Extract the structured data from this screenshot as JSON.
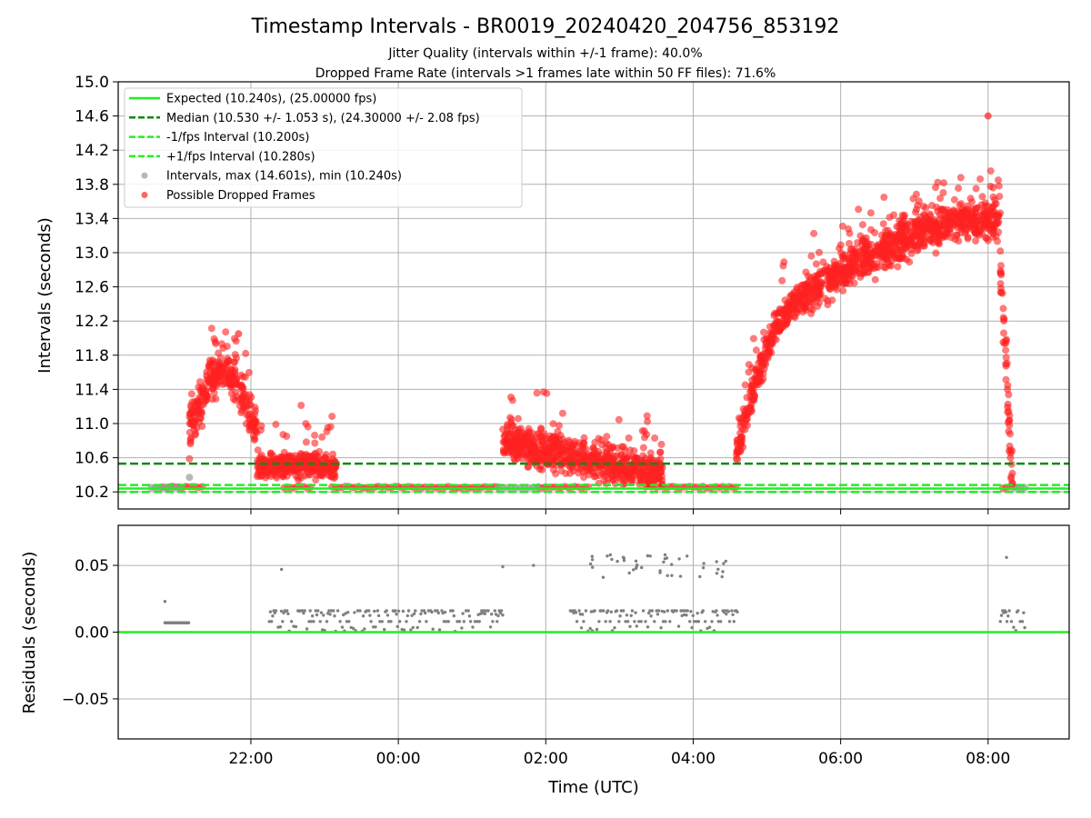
{
  "figure": {
    "title": "Timestamp Intervals - BR0019_20240420_204756_853192",
    "subtitle_line1": "Jitter Quality (intervals within +/-1 frame): 40.0%",
    "subtitle_line2": "Dropped Frame Rate (intervals >1 frames late within 50 FF files): 71.6%"
  },
  "colors": {
    "expected": "#22ee22",
    "median": "#118811",
    "interval_points": "#999999",
    "dropped_points": "#ff2222",
    "residual_points": "#808080",
    "grid": "#b0b0b0"
  },
  "chart_data": [
    {
      "type": "scatter",
      "ylabel": "Intervals (seconds)",
      "x_hours_range": [
        -3.8,
        9.1
      ],
      "ylim": [
        10.0,
        15.0
      ],
      "yticks": [
        "10.2",
        "10.6",
        "11.0",
        "11.4",
        "11.8",
        "12.2",
        "12.6",
        "13.0",
        "13.4",
        "13.8",
        "14.2",
        "14.6",
        "15.0"
      ],
      "grid": true,
      "legend_position": "top-left",
      "reference_lines": [
        {
          "name": "Expected (10.240s), (25.00000 fps)",
          "y": 10.24,
          "style": "solid"
        },
        {
          "name": "Median (10.530 +/- 1.053 s), (24.30000 +/- 2.08 fps)",
          "y": 10.53,
          "style": "dashed"
        },
        {
          "name": "-1/fps Interval (10.200s)",
          "y": 10.2,
          "style": "dashed"
        },
        {
          "name": "+1/fps Interval (10.280s)",
          "y": 10.28,
          "style": "dashed"
        }
      ],
      "series": [
        {
          "name": "Intervals, max (14.601s), min (10.240s)",
          "kind": "scatter",
          "max": 14.601,
          "min": 10.24
        },
        {
          "name": "Possible Dropped Frames",
          "kind": "scatter"
        }
      ],
      "trend_segments": [
        {
          "from": "21:10",
          "to": "22:05",
          "shape": "hump",
          "base": 10.9,
          "peak": 11.6
        },
        {
          "from": "22:05",
          "to": "23:10",
          "shape": "flat",
          "base": 10.5
        },
        {
          "from": "01:25",
          "to": "03:35",
          "shape": "decay",
          "start": 10.8,
          "end": 10.4
        },
        {
          "from": "04:35",
          "to": "05:35",
          "shape": "rise",
          "start": 10.6,
          "end": 12.5
        },
        {
          "from": "05:35",
          "to": "08:10",
          "shape": "rise",
          "start": 12.5,
          "end": 13.4
        },
        {
          "from": "08:10",
          "to": "08:20",
          "shape": "drop",
          "start": 12.8,
          "end": 10.25
        }
      ],
      "notable_points": [
        {
          "x": "21:10",
          "y": 10.37,
          "series": "Intervals, max (14.601s), min (10.240s)"
        },
        {
          "x": "08:00",
          "y": 14.6,
          "series": "Possible Dropped Frames"
        },
        {
          "x": "21:50",
          "y": 12.05,
          "series": "Possible Dropped Frames"
        }
      ]
    },
    {
      "type": "scatter",
      "xlabel": "Time (UTC)",
      "ylabel": "Residuals (seconds)",
      "xticks": [
        "22:00",
        "00:00",
        "02:00",
        "04:00",
        "06:00",
        "08:00"
      ],
      "ylim": [
        -0.08,
        0.08
      ],
      "yticks": [
        "0.05",
        "0.00",
        "−0.05"
      ],
      "grid": true,
      "reference_line": {
        "y": 0.0
      },
      "residual_segments": [
        {
          "from": "20:50",
          "to": "21:10",
          "level": 0.007
        },
        {
          "from": "22:15",
          "to": "01:25",
          "level": "0.000 to 0.016"
        },
        {
          "from": "02:20",
          "to": "04:35",
          "level": "0.000 to 0.016"
        },
        {
          "from": "08:10",
          "to": "08:30",
          "level": "0.000 to 0.016"
        }
      ],
      "outliers": [
        {
          "x": "20:50",
          "y": 0.023
        },
        {
          "x": "22:25",
          "y": 0.047
        },
        {
          "x": "01:25",
          "y": 0.049
        },
        {
          "x": "01:50",
          "y": 0.05
        },
        {
          "x": "02:50",
          "y": 0.057
        },
        {
          "x": "03:25",
          "y": 0.057
        },
        {
          "x": "03:55",
          "y": 0.057
        },
        {
          "x": "08:15",
          "y": 0.056
        }
      ]
    }
  ]
}
